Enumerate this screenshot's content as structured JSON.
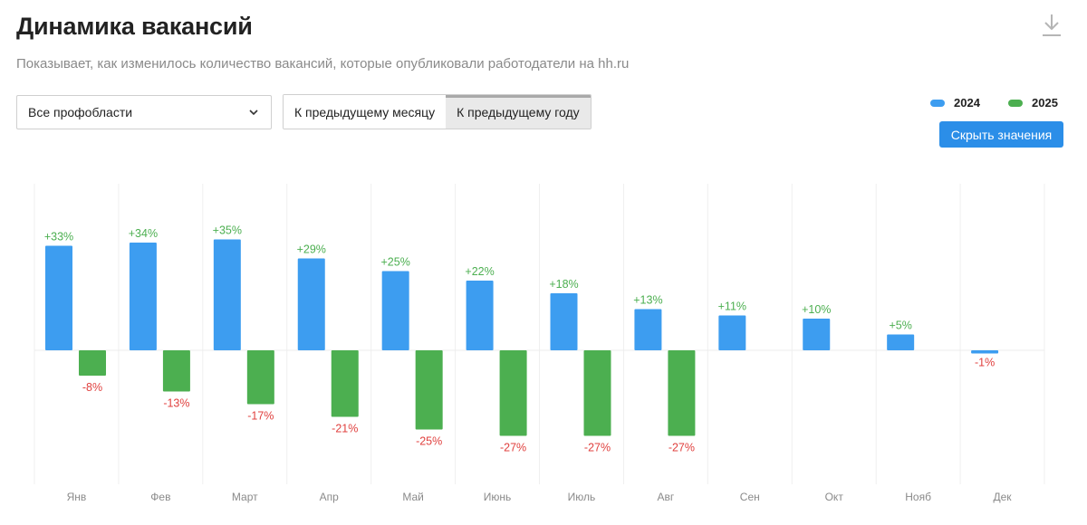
{
  "header": {
    "title": "Динамика вакансий",
    "subtitle": "Показывает, как изменилось количество вакансий, которые опубликовали работодатели на hh.ru"
  },
  "controls": {
    "profarea_select": "Все профобласти",
    "compare_options": [
      "К предыдущему месяцу",
      "К предыдущему году"
    ],
    "compare_selected": "К предыдущему году",
    "hide_values_button": "Скрыть значения"
  },
  "icons": {
    "download": "download-icon",
    "select_chevron": "chevron-down-icon"
  },
  "colors": {
    "series_2024": "#3d9df0",
    "series_2025": "#4caf50",
    "positive_label": "#4caf50",
    "negative_label": "#e0413f",
    "accent_button": "#2b8ee8"
  },
  "chart_data": {
    "type": "bar",
    "categories": [
      "Янв",
      "Фев",
      "Март",
      "Апр",
      "Май",
      "Июнь",
      "Июль",
      "Авг",
      "Сен",
      "Окт",
      "Нояб",
      "Дек"
    ],
    "series": [
      {
        "name": "2024",
        "values": [
          33,
          34,
          35,
          29,
          25,
          22,
          18,
          13,
          11,
          10,
          5,
          -1
        ],
        "labels": [
          "+33%",
          "+34%",
          "+35%",
          "+29%",
          "+25%",
          "+22%",
          "+18%",
          "+13%",
          "+11%",
          "+10%",
          "+5%",
          "-1%"
        ]
      },
      {
        "name": "2025",
        "values": [
          -8,
          -13,
          -17,
          -21,
          -25,
          -27,
          -27,
          -27,
          null,
          null,
          null,
          null
        ],
        "labels": [
          "-8%",
          "-13%",
          "-17%",
          "-21%",
          "-25%",
          "-27%",
          "-27%",
          "-27%",
          null,
          null,
          null,
          null
        ]
      }
    ],
    "unit": "%",
    "legend_position": "top-right",
    "grid": "vertical category separators",
    "ylim": [
      -40,
      40
    ]
  }
}
